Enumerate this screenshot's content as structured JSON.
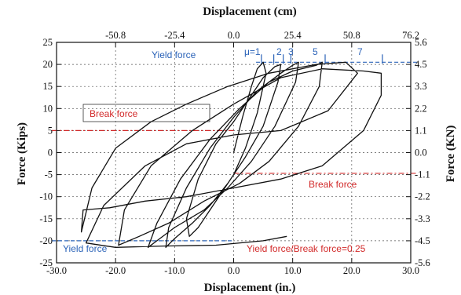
{
  "chart_data": {
    "type": "line",
    "title": "",
    "xlabel": "Displacement (in.)",
    "ylabel": "Force (Kips)",
    "top_xlabel": "Displacement (cm)",
    "right_ylabel": "Force (KN)",
    "xlim": [
      -30,
      30
    ],
    "ylim": [
      -25,
      25
    ],
    "x_ticks": [
      "-30.0",
      "-20.0",
      "-10.0",
      "0.0",
      "10.0",
      "20.0",
      "30.0"
    ],
    "x_tick_values": [
      -30,
      -20,
      -10,
      0,
      10,
      20,
      30
    ],
    "y_ticks": [
      "25",
      "20",
      "15",
      "10",
      "5",
      "0",
      "-5",
      "-10",
      "-15",
      "-20",
      "-25"
    ],
    "y_tick_values": [
      25,
      20,
      15,
      10,
      5,
      0,
      -5,
      -10,
      -15,
      -20,
      -25
    ],
    "top_ticks": [
      "-50.8",
      "-25.4",
      "0.0",
      "25.4",
      "50.8",
      "76.2"
    ],
    "top_tick_values": [
      -20,
      -10,
      0,
      10,
      20,
      30
    ],
    "right_ticks": [
      "5.6",
      "4.5",
      "3.3",
      "2.2",
      "1.1",
      "0.0",
      "-1.1",
      "-2.2",
      "-3.3",
      "-4.5",
      "-5.6"
    ],
    "right_tick_values": [
      25,
      20,
      15,
      10,
      5,
      0,
      -5,
      -10,
      -15,
      -20,
      -25
    ],
    "grid": true,
    "colors": {
      "curve": "#111111",
      "annotation_blue": "#2b63b8",
      "annotation_red": "#d22a2a"
    },
    "series": [
      {
        "values": [
          [
            0,
            0
          ],
          [
            1.5,
            8
          ],
          [
            3,
            15
          ],
          [
            4,
            19
          ],
          [
            5,
            20.5
          ],
          [
            5.5,
            18
          ],
          [
            4,
            9
          ],
          [
            2,
            1
          ],
          [
            0,
            -5
          ],
          [
            -2,
            -9
          ],
          [
            -4,
            -13
          ],
          [
            -6,
            -17
          ],
          [
            -7.5,
            -19
          ],
          [
            -8,
            -15
          ],
          [
            -6,
            -6
          ],
          [
            -3,
            2
          ],
          [
            0,
            7
          ],
          [
            2.5,
            12
          ],
          [
            5,
            17
          ],
          [
            7,
            19.5
          ],
          [
            8,
            20
          ],
          [
            7.5,
            16
          ],
          [
            5,
            6
          ],
          [
            2,
            -1
          ],
          [
            -1,
            -7
          ],
          [
            -4,
            -12
          ],
          [
            -7,
            -16
          ],
          [
            -10,
            -19.5
          ],
          [
            -11.5,
            -21.5
          ],
          [
            -11,
            -17
          ],
          [
            -8,
            -8
          ],
          [
            -4,
            1
          ],
          [
            0,
            8
          ],
          [
            4,
            14
          ],
          [
            8,
            18
          ],
          [
            10,
            19.8
          ],
          [
            11,
            20.5
          ],
          [
            10.5,
            16
          ],
          [
            7,
            6
          ],
          [
            3,
            -2
          ],
          [
            -1,
            -8
          ],
          [
            -5,
            -13
          ],
          [
            -10,
            -17
          ],
          [
            -13,
            -20
          ],
          [
            -14.5,
            -21.5
          ],
          [
            -13,
            -16
          ],
          [
            -9,
            -6
          ],
          [
            -4,
            3
          ],
          [
            1,
            10
          ],
          [
            6,
            16
          ],
          [
            10,
            18.5
          ],
          [
            14,
            19.8
          ],
          [
            15,
            20.5
          ],
          [
            14.5,
            15
          ],
          [
            11,
            6
          ],
          [
            6,
            -2
          ],
          [
            1,
            -7
          ],
          [
            -5,
            -11
          ],
          [
            -11,
            -16
          ],
          [
            -16,
            -19
          ],
          [
            -19.5,
            -21
          ],
          [
            -18.5,
            -13
          ],
          [
            -14,
            -3
          ],
          [
            -7,
            5
          ],
          [
            0,
            11
          ],
          [
            8,
            17
          ],
          [
            15,
            19
          ],
          [
            22,
            18.5
          ],
          [
            25,
            18
          ],
          [
            25,
            13
          ],
          [
            22,
            5
          ],
          [
            15,
            -3
          ],
          [
            8,
            -6
          ],
          [
            0,
            -8
          ],
          [
            -8,
            -10
          ],
          [
            -15,
            -11
          ],
          [
            -21,
            -12.5
          ],
          [
            -25.5,
            -13
          ],
          [
            -25.8,
            -18
          ],
          [
            -24,
            -8
          ],
          [
            -20,
            1
          ],
          [
            -14,
            7
          ],
          [
            -8,
            11
          ],
          [
            -1,
            15
          ],
          [
            6,
            18
          ],
          [
            14,
            20
          ],
          [
            19,
            20.5
          ],
          [
            21,
            18
          ],
          [
            16,
            9.5
          ],
          [
            8,
            5
          ],
          [
            0,
            4
          ],
          [
            -8,
            2
          ],
          [
            -15,
            -3
          ],
          [
            -22,
            -12
          ],
          [
            -25,
            -20.5
          ],
          [
            -20,
            -21.5
          ],
          [
            -12,
            -21.2
          ],
          [
            -3,
            -21
          ],
          [
            5,
            -20
          ],
          [
            9,
            -19
          ]
        ]
      }
    ],
    "annotations": {
      "yield_force_top": "Yield force",
      "yield_force_bottom": "Yield force",
      "break_force_left": "Break force",
      "break_force_right": "Break force",
      "ratio": "Yield force/Break force=0.25",
      "ductility": [
        "μ=1",
        "2",
        "3",
        "5",
        "7"
      ]
    },
    "reference_lines": {
      "yield_upper_y": 20.5,
      "yield_lower_y": -20,
      "break_upper_y": 5,
      "break_lower_y": -4.7
    },
    "ductility_marks_x": [
      4.7,
      6.8,
      8.4,
      9.7,
      15.5,
      25.2
    ]
  }
}
